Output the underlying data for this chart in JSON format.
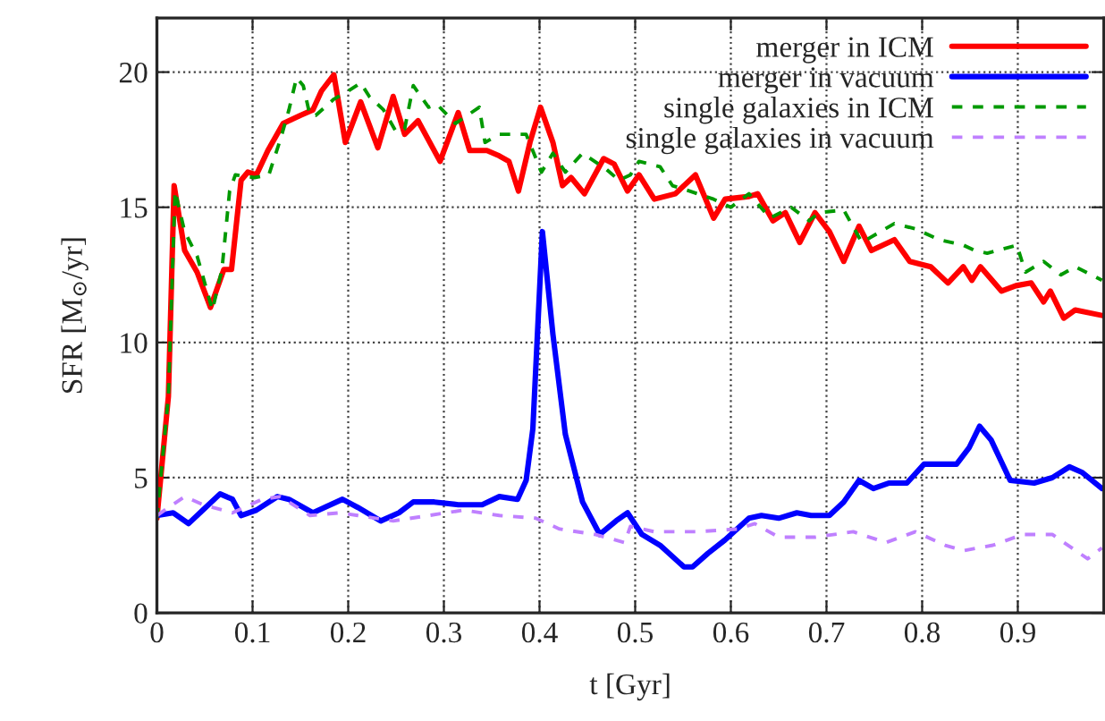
{
  "chart_data": {
    "type": "line",
    "xlabel": "t [Gyr]",
    "ylabel": "SFR [M$_{⊙}$/yr]",
    "xlim": [
      0,
      0.99
    ],
    "ylim": [
      0,
      22
    ],
    "xticks": [
      0,
      0.1,
      0.2,
      0.3,
      0.4,
      0.5,
      0.6,
      0.7,
      0.8,
      0.9
    ],
    "yticks": [
      0,
      5,
      10,
      15,
      20
    ],
    "grid": true,
    "legend": "top right",
    "series": [
      {
        "name": "merger in ICM",
        "color": "#ff0000",
        "line_style": "solid",
        "x": [
          0,
          0.012,
          0.018,
          0.029,
          0.042,
          0.056,
          0.07,
          0.078,
          0.088,
          0.095,
          0.104,
          0.116,
          0.132,
          0.15,
          0.163,
          0.172,
          0.185,
          0.197,
          0.213,
          0.231,
          0.247,
          0.259,
          0.273,
          0.296,
          0.315,
          0.327,
          0.345,
          0.358,
          0.368,
          0.378,
          0.39,
          0.401,
          0.414,
          0.424,
          0.433,
          0.447,
          0.467,
          0.478,
          0.492,
          0.504,
          0.52,
          0.542,
          0.563,
          0.582,
          0.594,
          0.619,
          0.628,
          0.644,
          0.657,
          0.672,
          0.688,
          0.703,
          0.718,
          0.734,
          0.747,
          0.771,
          0.787,
          0.809,
          0.827,
          0.843,
          0.852,
          0.861,
          0.883,
          0.898,
          0.914,
          0.927,
          0.934,
          0.948,
          0.96,
          0.988
        ],
        "values": [
          3.5,
          8.0,
          15.8,
          13.4,
          12.6,
          11.3,
          12.7,
          12.7,
          16.0,
          16.3,
          16.2,
          17.1,
          18.1,
          18.4,
          18.6,
          19.3,
          19.9,
          17.4,
          18.9,
          17.2,
          19.1,
          17.7,
          18.2,
          16.7,
          18.5,
          17.1,
          17.1,
          16.9,
          16.7,
          15.6,
          17.4,
          18.7,
          17.4,
          15.8,
          16.1,
          15.5,
          16.8,
          16.6,
          15.6,
          16.2,
          15.3,
          15.5,
          16.2,
          14.6,
          15.3,
          15.4,
          15.5,
          14.5,
          14.8,
          13.7,
          14.8,
          14.1,
          13.0,
          14.3,
          13.4,
          13.8,
          13.0,
          12.8,
          12.2,
          12.8,
          12.3,
          12.8,
          11.9,
          12.1,
          12.2,
          11.5,
          11.9,
          10.9,
          11.2,
          11.0
        ]
      },
      {
        "name": "merger in vacuum",
        "color": "#0000ff",
        "line_style": "solid",
        "x": [
          0,
          0.017,
          0.033,
          0.048,
          0.066,
          0.079,
          0.088,
          0.104,
          0.126,
          0.138,
          0.163,
          0.194,
          0.21,
          0.234,
          0.253,
          0.268,
          0.29,
          0.315,
          0.34,
          0.358,
          0.377,
          0.386,
          0.393,
          0.403,
          0.414,
          0.427,
          0.445,
          0.463,
          0.48,
          0.492,
          0.507,
          0.526,
          0.551,
          0.56,
          0.576,
          0.594,
          0.619,
          0.632,
          0.65,
          0.669,
          0.684,
          0.703,
          0.718,
          0.734,
          0.749,
          0.765,
          0.784,
          0.802,
          0.836,
          0.849,
          0.86,
          0.872,
          0.892,
          0.917,
          0.936,
          0.954,
          0.967,
          0.988
        ],
        "values": [
          3.6,
          3.7,
          3.3,
          3.8,
          4.4,
          4.2,
          3.6,
          3.8,
          4.3,
          4.2,
          3.7,
          4.2,
          3.9,
          3.4,
          3.7,
          4.1,
          4.1,
          4.0,
          4.0,
          4.3,
          4.2,
          4.9,
          6.8,
          14.1,
          10.3,
          6.6,
          4.1,
          2.9,
          3.4,
          3.7,
          2.9,
          2.5,
          1.7,
          1.7,
          2.2,
          2.7,
          3.5,
          3.6,
          3.5,
          3.7,
          3.6,
          3.6,
          4.1,
          4.9,
          4.6,
          4.8,
          4.8,
          5.5,
          5.5,
          6.1,
          6.9,
          6.4,
          4.9,
          4.8,
          5.0,
          5.4,
          5.2,
          4.6
        ]
      },
      {
        "name": "single galaxies in ICM",
        "color": "#009900",
        "line_style": "dashed",
        "x": [
          0,
          0.012,
          0.019,
          0.029,
          0.042,
          0.058,
          0.068,
          0.076,
          0.082,
          0.102,
          0.117,
          0.129,
          0.138,
          0.146,
          0.153,
          0.16,
          0.166,
          0.185,
          0.2,
          0.213,
          0.222,
          0.237,
          0.25,
          0.259,
          0.268,
          0.284,
          0.293,
          0.312,
          0.337,
          0.343,
          0.358,
          0.386,
          0.402,
          0.414,
          0.427,
          0.445,
          0.47,
          0.483,
          0.495,
          0.504,
          0.526,
          0.539,
          0.557,
          0.582,
          0.6,
          0.619,
          0.641,
          0.663,
          0.682,
          0.692,
          0.718,
          0.737,
          0.771,
          0.793,
          0.818,
          0.843,
          0.855,
          0.868,
          0.899,
          0.908,
          0.927,
          0.945,
          0.96,
          0.988
        ],
        "values": [
          3.5,
          8.0,
          15.6,
          14.1,
          13.2,
          11.2,
          12.7,
          15.6,
          16.2,
          16.1,
          16.2,
          17.5,
          18.6,
          19.8,
          19.5,
          18.4,
          18.4,
          19.0,
          19.3,
          19.6,
          19.1,
          18.6,
          17.8,
          17.9,
          19.5,
          18.7,
          18.8,
          18.1,
          18.7,
          17.4,
          17.7,
          17.7,
          16.3,
          17.0,
          16.3,
          17.0,
          16.4,
          16.0,
          16.2,
          16.7,
          16.5,
          15.8,
          15.6,
          15.3,
          15.0,
          15.5,
          14.6,
          15.0,
          14.5,
          14.8,
          14.9,
          13.7,
          14.4,
          14.2,
          13.8,
          13.6,
          13.4,
          13.3,
          13.6,
          12.6,
          13.0,
          12.5,
          12.8,
          12.3
        ]
      },
      {
        "name": "single galaxies in vacuum",
        "color": "#bf80ff",
        "line_style": "dashed",
        "x": [
          0,
          0.029,
          0.048,
          0.079,
          0.11,
          0.129,
          0.16,
          0.191,
          0.21,
          0.247,
          0.284,
          0.321,
          0.358,
          0.396,
          0.421,
          0.458,
          0.489,
          0.495,
          0.52,
          0.563,
          0.607,
          0.625,
          0.65,
          0.688,
          0.728,
          0.762,
          0.793,
          0.824,
          0.843,
          0.874,
          0.905,
          0.936,
          0.973,
          0.988
        ],
        "values": [
          3.6,
          4.3,
          4.0,
          3.7,
          4.2,
          4.3,
          3.6,
          3.7,
          3.6,
          3.4,
          3.6,
          3.8,
          3.6,
          3.5,
          3.1,
          2.9,
          2.6,
          3.2,
          3.0,
          3.0,
          3.1,
          3.3,
          2.8,
          2.8,
          3.0,
          2.6,
          3.0,
          2.5,
          2.3,
          2.5,
          2.9,
          2.9,
          2.0,
          2.4
        ]
      }
    ]
  }
}
